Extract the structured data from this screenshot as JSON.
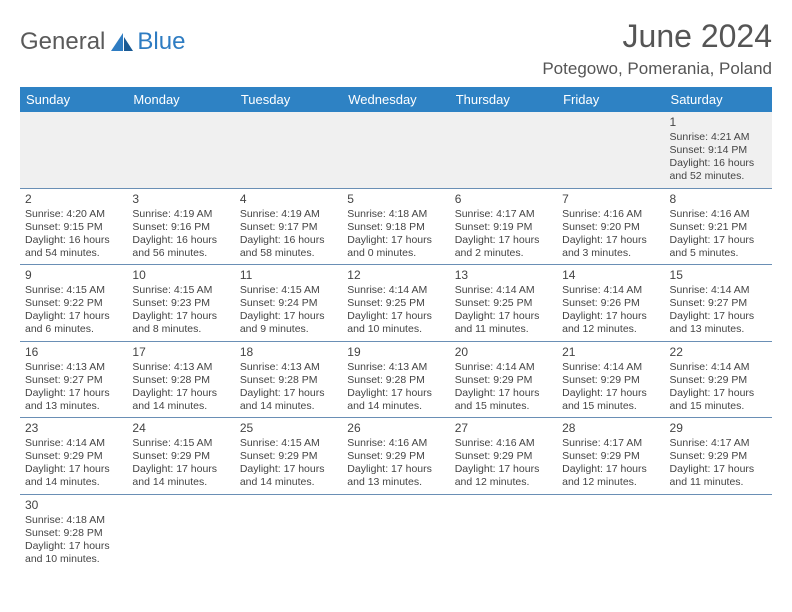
{
  "logo": {
    "text1": "General",
    "text2": "Blue"
  },
  "title": "June 2024",
  "location": "Potegowo, Pomerania, Poland",
  "colors": {
    "header_bg": "#2e82c4",
    "header_text": "#ffffff",
    "row_border": "#6a8fb5",
    "first_row_bg": "#f0f0f0",
    "logo_blue": "#2e7cc2",
    "text": "#444444"
  },
  "weekdays": [
    "Sunday",
    "Monday",
    "Tuesday",
    "Wednesday",
    "Thursday",
    "Friday",
    "Saturday"
  ],
  "weeks": [
    [
      null,
      null,
      null,
      null,
      null,
      null,
      {
        "n": "1",
        "sr": "Sunrise: 4:21 AM",
        "ss": "Sunset: 9:14 PM",
        "d1": "Daylight: 16 hours",
        "d2": "and 52 minutes."
      }
    ],
    [
      {
        "n": "2",
        "sr": "Sunrise: 4:20 AM",
        "ss": "Sunset: 9:15 PM",
        "d1": "Daylight: 16 hours",
        "d2": "and 54 minutes."
      },
      {
        "n": "3",
        "sr": "Sunrise: 4:19 AM",
        "ss": "Sunset: 9:16 PM",
        "d1": "Daylight: 16 hours",
        "d2": "and 56 minutes."
      },
      {
        "n": "4",
        "sr": "Sunrise: 4:19 AM",
        "ss": "Sunset: 9:17 PM",
        "d1": "Daylight: 16 hours",
        "d2": "and 58 minutes."
      },
      {
        "n": "5",
        "sr": "Sunrise: 4:18 AM",
        "ss": "Sunset: 9:18 PM",
        "d1": "Daylight: 17 hours",
        "d2": "and 0 minutes."
      },
      {
        "n": "6",
        "sr": "Sunrise: 4:17 AM",
        "ss": "Sunset: 9:19 PM",
        "d1": "Daylight: 17 hours",
        "d2": "and 2 minutes."
      },
      {
        "n": "7",
        "sr": "Sunrise: 4:16 AM",
        "ss": "Sunset: 9:20 PM",
        "d1": "Daylight: 17 hours",
        "d2": "and 3 minutes."
      },
      {
        "n": "8",
        "sr": "Sunrise: 4:16 AM",
        "ss": "Sunset: 9:21 PM",
        "d1": "Daylight: 17 hours",
        "d2": "and 5 minutes."
      }
    ],
    [
      {
        "n": "9",
        "sr": "Sunrise: 4:15 AM",
        "ss": "Sunset: 9:22 PM",
        "d1": "Daylight: 17 hours",
        "d2": "and 6 minutes."
      },
      {
        "n": "10",
        "sr": "Sunrise: 4:15 AM",
        "ss": "Sunset: 9:23 PM",
        "d1": "Daylight: 17 hours",
        "d2": "and 8 minutes."
      },
      {
        "n": "11",
        "sr": "Sunrise: 4:15 AM",
        "ss": "Sunset: 9:24 PM",
        "d1": "Daylight: 17 hours",
        "d2": "and 9 minutes."
      },
      {
        "n": "12",
        "sr": "Sunrise: 4:14 AM",
        "ss": "Sunset: 9:25 PM",
        "d1": "Daylight: 17 hours",
        "d2": "and 10 minutes."
      },
      {
        "n": "13",
        "sr": "Sunrise: 4:14 AM",
        "ss": "Sunset: 9:25 PM",
        "d1": "Daylight: 17 hours",
        "d2": "and 11 minutes."
      },
      {
        "n": "14",
        "sr": "Sunrise: 4:14 AM",
        "ss": "Sunset: 9:26 PM",
        "d1": "Daylight: 17 hours",
        "d2": "and 12 minutes."
      },
      {
        "n": "15",
        "sr": "Sunrise: 4:14 AM",
        "ss": "Sunset: 9:27 PM",
        "d1": "Daylight: 17 hours",
        "d2": "and 13 minutes."
      }
    ],
    [
      {
        "n": "16",
        "sr": "Sunrise: 4:13 AM",
        "ss": "Sunset: 9:27 PM",
        "d1": "Daylight: 17 hours",
        "d2": "and 13 minutes."
      },
      {
        "n": "17",
        "sr": "Sunrise: 4:13 AM",
        "ss": "Sunset: 9:28 PM",
        "d1": "Daylight: 17 hours",
        "d2": "and 14 minutes."
      },
      {
        "n": "18",
        "sr": "Sunrise: 4:13 AM",
        "ss": "Sunset: 9:28 PM",
        "d1": "Daylight: 17 hours",
        "d2": "and 14 minutes."
      },
      {
        "n": "19",
        "sr": "Sunrise: 4:13 AM",
        "ss": "Sunset: 9:28 PM",
        "d1": "Daylight: 17 hours",
        "d2": "and 14 minutes."
      },
      {
        "n": "20",
        "sr": "Sunrise: 4:14 AM",
        "ss": "Sunset: 9:29 PM",
        "d1": "Daylight: 17 hours",
        "d2": "and 15 minutes."
      },
      {
        "n": "21",
        "sr": "Sunrise: 4:14 AM",
        "ss": "Sunset: 9:29 PM",
        "d1": "Daylight: 17 hours",
        "d2": "and 15 minutes."
      },
      {
        "n": "22",
        "sr": "Sunrise: 4:14 AM",
        "ss": "Sunset: 9:29 PM",
        "d1": "Daylight: 17 hours",
        "d2": "and 15 minutes."
      }
    ],
    [
      {
        "n": "23",
        "sr": "Sunrise: 4:14 AM",
        "ss": "Sunset: 9:29 PM",
        "d1": "Daylight: 17 hours",
        "d2": "and 14 minutes."
      },
      {
        "n": "24",
        "sr": "Sunrise: 4:15 AM",
        "ss": "Sunset: 9:29 PM",
        "d1": "Daylight: 17 hours",
        "d2": "and 14 minutes."
      },
      {
        "n": "25",
        "sr": "Sunrise: 4:15 AM",
        "ss": "Sunset: 9:29 PM",
        "d1": "Daylight: 17 hours",
        "d2": "and 14 minutes."
      },
      {
        "n": "26",
        "sr": "Sunrise: 4:16 AM",
        "ss": "Sunset: 9:29 PM",
        "d1": "Daylight: 17 hours",
        "d2": "and 13 minutes."
      },
      {
        "n": "27",
        "sr": "Sunrise: 4:16 AM",
        "ss": "Sunset: 9:29 PM",
        "d1": "Daylight: 17 hours",
        "d2": "and 12 minutes."
      },
      {
        "n": "28",
        "sr": "Sunrise: 4:17 AM",
        "ss": "Sunset: 9:29 PM",
        "d1": "Daylight: 17 hours",
        "d2": "and 12 minutes."
      },
      {
        "n": "29",
        "sr": "Sunrise: 4:17 AM",
        "ss": "Sunset: 9:29 PM",
        "d1": "Daylight: 17 hours",
        "d2": "and 11 minutes."
      }
    ],
    [
      {
        "n": "30",
        "sr": "Sunrise: 4:18 AM",
        "ss": "Sunset: 9:28 PM",
        "d1": "Daylight: 17 hours",
        "d2": "and 10 minutes."
      },
      null,
      null,
      null,
      null,
      null,
      null
    ]
  ]
}
